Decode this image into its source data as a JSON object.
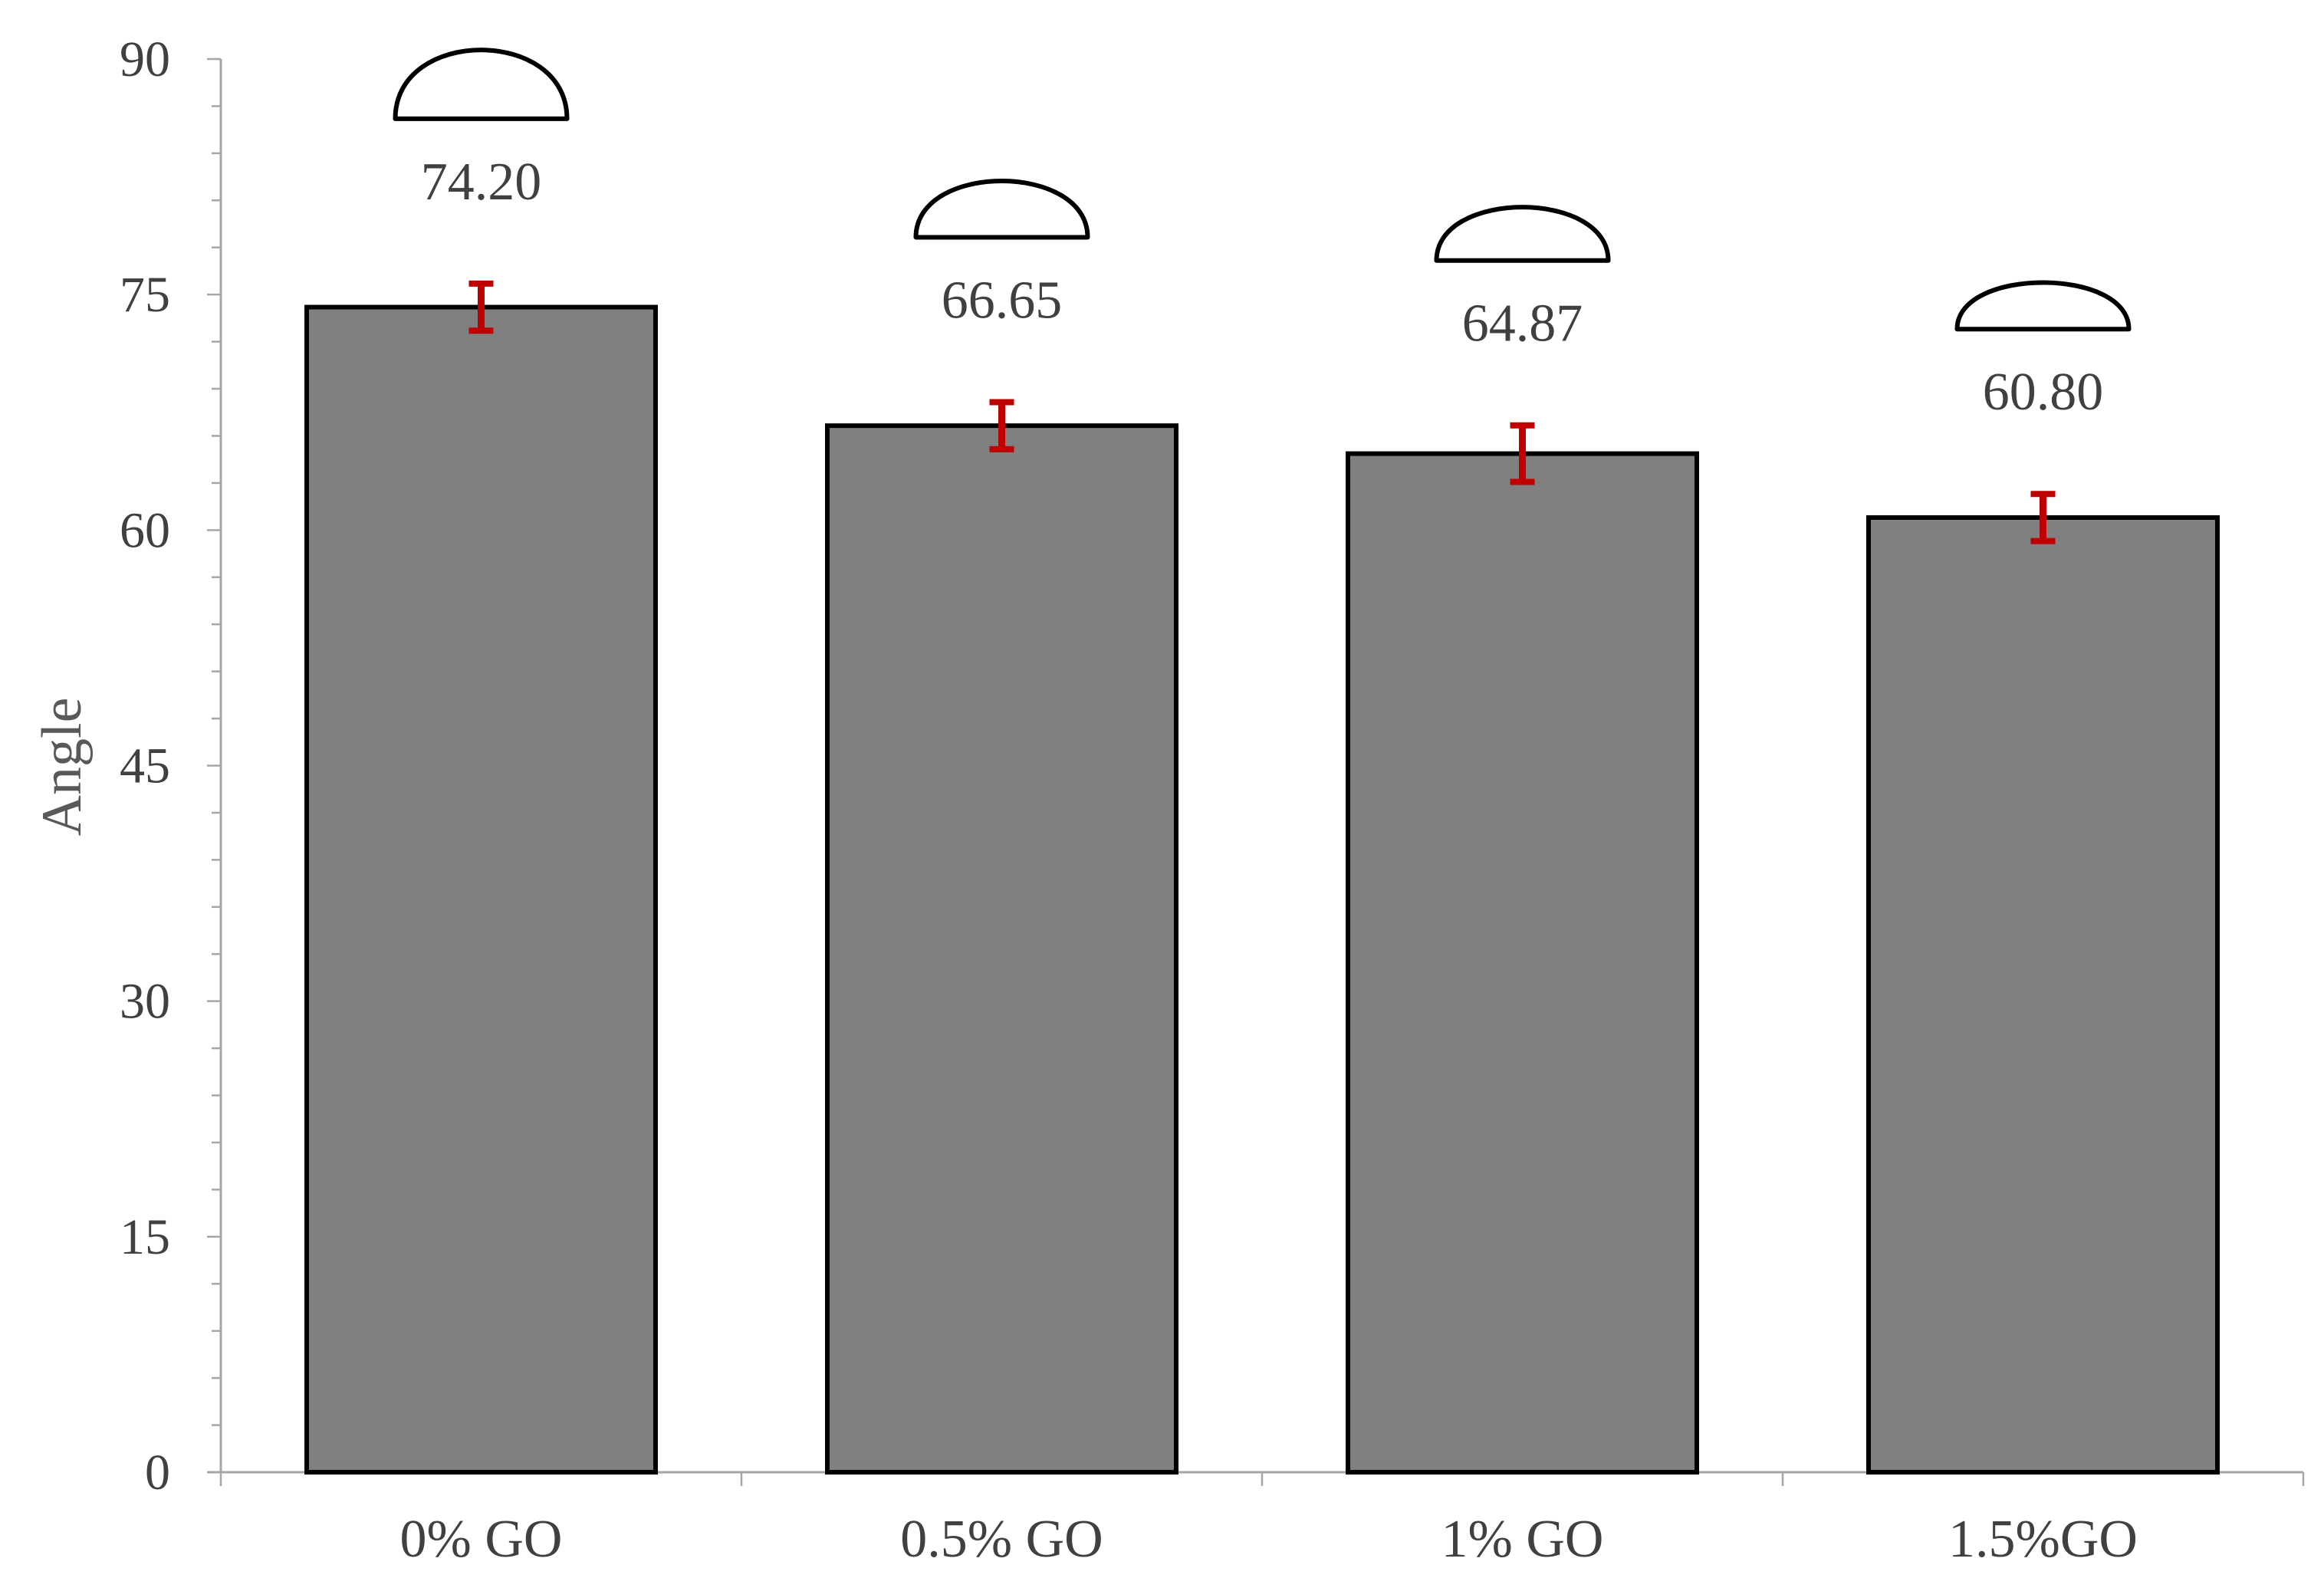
{
  "chart_data": {
    "type": "bar",
    "categories": [
      "0% GO",
      "0.5% GO",
      "1% GO",
      "1.5%GO"
    ],
    "values": [
      74.2,
      66.65,
      64.87,
      60.8
    ],
    "data_labels": [
      "74.20",
      "66.65",
      "64.87",
      "60.80"
    ],
    "error": [
      1.5,
      1.5,
      1.8,
      1.5
    ],
    "title": "",
    "xlabel": "",
    "ylabel": "Angle",
    "ylim": [
      0,
      90
    ],
    "yticks": [
      0,
      15,
      30,
      45,
      60,
      75,
      90
    ],
    "ytick_labels": [
      "0",
      "15",
      "30",
      "45",
      "60",
      "75",
      "90"
    ],
    "grid": false,
    "legend": "none",
    "colors": {
      "bar_fill": "#808080",
      "bar_stroke": "#000000",
      "error_bar": "#c00000",
      "axis": "#a6a6a6",
      "droplet_stroke": "#000000"
    },
    "icons": [
      "droplet-icon",
      "droplet-icon",
      "droplet-icon",
      "droplet-icon"
    ]
  }
}
